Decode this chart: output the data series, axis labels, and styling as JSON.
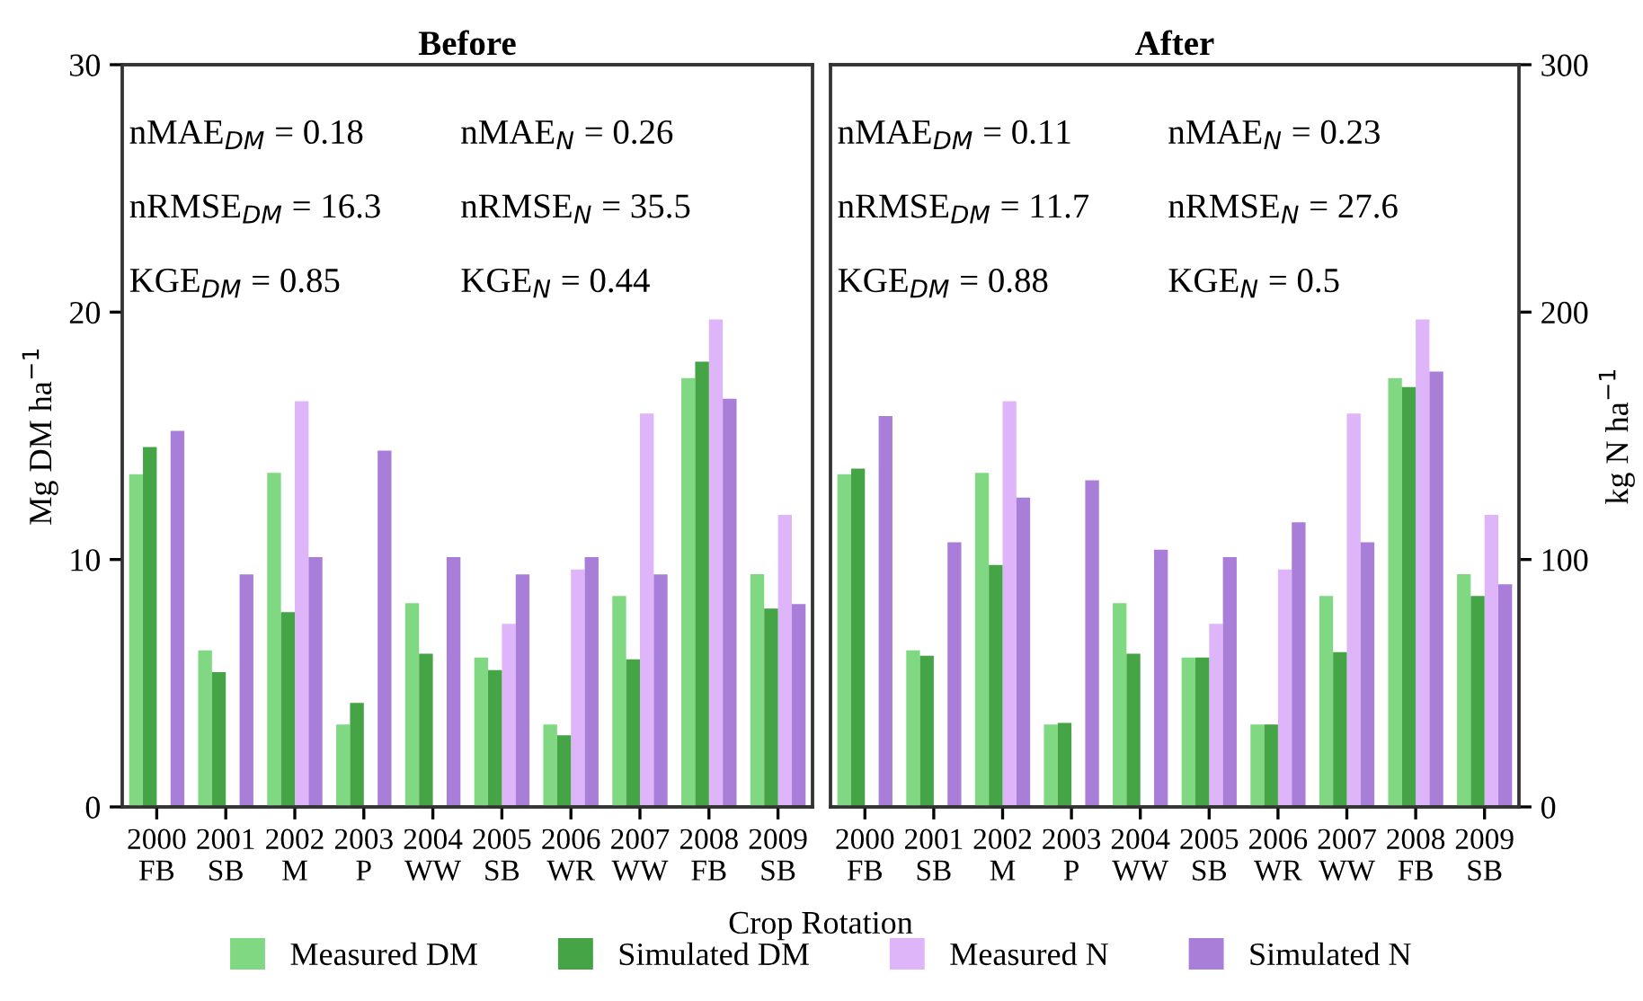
{
  "chart_data": [
    {
      "type": "bar",
      "title": "Before",
      "xlabel": "Crop Rotation",
      "ylabel": "Mg DM ha$^{−1}$",
      "categories": [
        "2000\nFB",
        "2001\nSB",
        "2002\nM",
        "2003\nP",
        "2004\nWW",
        "2005\nSB",
        "2006\nWR",
        "2007\nWW",
        "2008\nFB",
        "2009\nSB"
      ],
      "series": [
        {
          "name": "Measured DM",
          "color": "#80d982",
          "values": [
            13.45,
            6.33,
            13.5,
            3.33,
            8.24,
            6.04,
            3.33,
            8.53,
            17.33,
            9.41
          ]
        },
        {
          "name": "Simulated DM",
          "color": "#44a446",
          "values": [
            14.55,
            5.45,
            7.87,
            4.2,
            6.19,
            5.53,
            2.9,
            5.97,
            18.0,
            8.02
          ]
        },
        {
          "name": "Measured N",
          "color": "#dfb5fa",
          "axis": "y2",
          "values": [
            null,
            null,
            164,
            null,
            null,
            74,
            96,
            159,
            197,
            118
          ]
        },
        {
          "name": "Simulated N",
          "color": "#a97ed9",
          "axis": "y2",
          "values": [
            152,
            94,
            101,
            144,
            101,
            94,
            101,
            94,
            165,
            82
          ]
        }
      ],
      "ylim": [
        0,
        30
      ],
      "yticks": [
        0,
        10,
        20,
        30
      ],
      "y2lim": [
        0,
        300
      ],
      "annotations": [
        "nMAE$_{DM}$ = 0.18",
        "nMAE$_{N}$ = 0.26",
        "nRMSE$_{DM}$ = 16.3",
        "nRMSE$_{N}$ = 35.5",
        "KGE$_{DM}$ = 0.85",
        "KGE$_{N}$ = 0.44"
      ],
      "legend": "bottom",
      "grid": false
    },
    {
      "type": "bar",
      "title": "After",
      "y2label": "kg N ha$^{−1}$",
      "categories": [
        "2000\nFB",
        "2001\nSB",
        "2002\nM",
        "2003\nP",
        "2004\nWW",
        "2005\nSB",
        "2006\nWR",
        "2007\nWW",
        "2008\nFB",
        "2009\nSB"
      ],
      "series": [
        {
          "name": "Measured DM",
          "color": "#80d982",
          "values": [
            13.45,
            6.33,
            13.5,
            3.33,
            8.24,
            6.04,
            3.33,
            8.53,
            17.33,
            9.41
          ]
        },
        {
          "name": "Simulated DM",
          "color": "#44a446",
          "values": [
            13.67,
            6.11,
            9.78,
            3.4,
            6.19,
            6.04,
            3.33,
            6.26,
            16.97,
            8.53
          ]
        },
        {
          "name": "Measured N",
          "color": "#dfb5fa",
          "axis": "y2",
          "values": [
            null,
            null,
            164,
            null,
            null,
            74,
            96,
            159,
            197,
            118
          ]
        },
        {
          "name": "Simulated N",
          "color": "#a97ed9",
          "axis": "y2",
          "values": [
            158,
            107,
            125,
            132,
            104,
            101,
            115,
            107,
            176,
            90
          ]
        }
      ],
      "ylim": [
        0,
        30
      ],
      "y2lim": [
        0,
        300
      ],
      "y2ticks": [
        0,
        100,
        200,
        300
      ],
      "annotations": [
        "nMAE$_{DM}$ = 0.11",
        "nMAE$_{N}$ = 0.23",
        "nRMSE$_{DM}$ = 11.7",
        "nRMSE$_{N}$ = 27.6",
        "KGE$_{DM}$ = 0.88",
        "KGE$_{N}$ = 0.5"
      ],
      "legend": "bottom",
      "grid": false
    }
  ]
}
